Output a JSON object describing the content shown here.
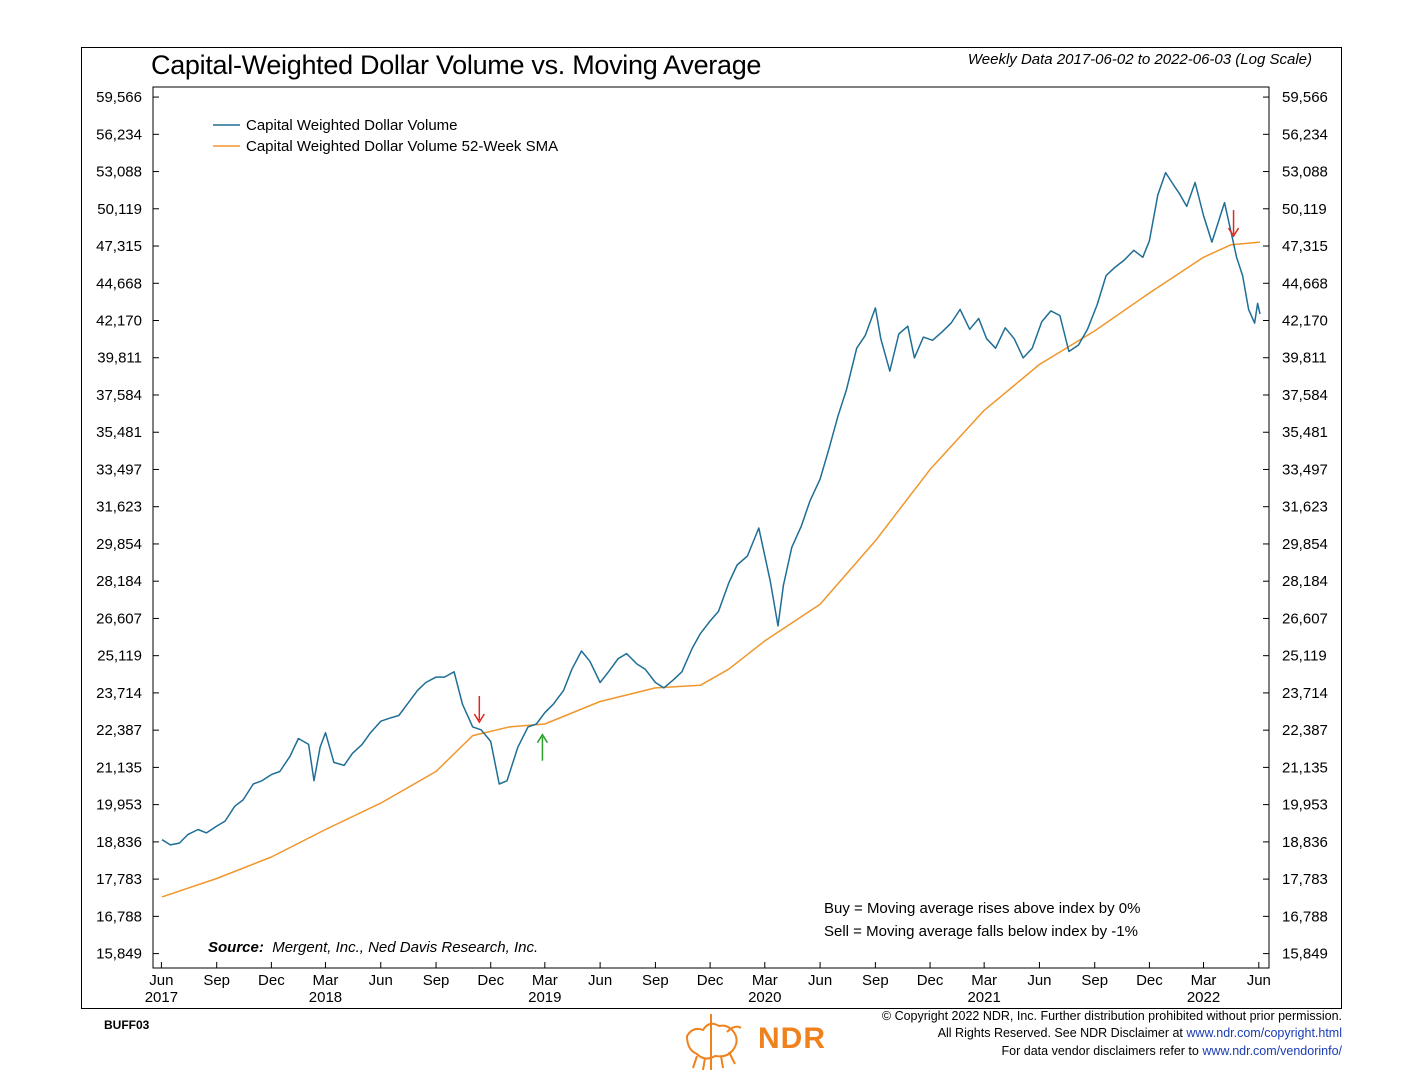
{
  "header": {
    "title": "Capital-Weighted Dollar Volume vs. Moving Average",
    "subtitle": "Weekly Data 2017-06-02 to 2022-06-03 (Log Scale)"
  },
  "chart_data": {
    "type": "line",
    "y_scale": "log",
    "ylim": [
      15500,
      60500
    ],
    "y_ticks": [
      15849,
      16788,
      17783,
      18836,
      19953,
      21135,
      22387,
      23714,
      25119,
      26607,
      28184,
      29854,
      31623,
      33497,
      35481,
      37584,
      39811,
      42170,
      44668,
      47315,
      50119,
      53088,
      56234,
      59566
    ],
    "y_tick_labels": [
      "15,849",
      "16,788",
      "17,783",
      "18,836",
      "19,953",
      "21,135",
      "22,387",
      "23,714",
      "25,119",
      "26,607",
      "28,184",
      "29,854",
      "31,623",
      "33,497",
      "35,481",
      "37,584",
      "39,811",
      "42,170",
      "44,668",
      "47,315",
      "50,119",
      "53,088",
      "56,234",
      "59,566"
    ],
    "x_range": [
      "2017-06-02",
      "2022-06-03"
    ],
    "x_ticks": [
      {
        "date": "2017-06-01",
        "label": "Jun",
        "year": "2017"
      },
      {
        "date": "2017-09-01",
        "label": "Sep"
      },
      {
        "date": "2017-12-01",
        "label": "Dec"
      },
      {
        "date": "2018-03-01",
        "label": "Mar",
        "year": "2018"
      },
      {
        "date": "2018-06-01",
        "label": "Jun"
      },
      {
        "date": "2018-09-01",
        "label": "Sep"
      },
      {
        "date": "2018-12-01",
        "label": "Dec"
      },
      {
        "date": "2019-03-01",
        "label": "Mar",
        "year": "2019"
      },
      {
        "date": "2019-06-01",
        "label": "Jun"
      },
      {
        "date": "2019-09-01",
        "label": "Sep"
      },
      {
        "date": "2019-12-01",
        "label": "Dec"
      },
      {
        "date": "2020-03-01",
        "label": "Mar",
        "year": "2020"
      },
      {
        "date": "2020-06-01",
        "label": "Jun"
      },
      {
        "date": "2020-09-01",
        "label": "Sep"
      },
      {
        "date": "2020-12-01",
        "label": "Dec"
      },
      {
        "date": "2021-03-01",
        "label": "Mar",
        "year": "2021"
      },
      {
        "date": "2021-06-01",
        "label": "Jun"
      },
      {
        "date": "2021-09-01",
        "label": "Sep"
      },
      {
        "date": "2021-12-01",
        "label": "Dec"
      },
      {
        "date": "2022-03-01",
        "label": "Mar",
        "year": "2022"
      },
      {
        "date": "2022-06-01",
        "label": "Jun"
      }
    ],
    "grid": false,
    "legend_position": "top-left",
    "series": [
      {
        "name": "Capital Weighted Dollar Volume",
        "color": "#1f6e96",
        "points": [
          [
            "2017-06-02",
            18900
          ],
          [
            "2017-06-16",
            18750
          ],
          [
            "2017-07-01",
            18800
          ],
          [
            "2017-07-15",
            19050
          ],
          [
            "2017-08-01",
            19200
          ],
          [
            "2017-08-15",
            19100
          ],
          [
            "2017-09-01",
            19300
          ],
          [
            "2017-09-15",
            19450
          ],
          [
            "2017-10-01",
            19900
          ],
          [
            "2017-10-15",
            20100
          ],
          [
            "2017-11-01",
            20600
          ],
          [
            "2017-11-15",
            20700
          ],
          [
            "2017-12-01",
            20900
          ],
          [
            "2017-12-15",
            21000
          ],
          [
            "2018-01-01",
            21500
          ],
          [
            "2018-01-15",
            22100
          ],
          [
            "2018-02-01",
            21900
          ],
          [
            "2018-02-10",
            20700
          ],
          [
            "2018-02-20",
            21800
          ],
          [
            "2018-03-01",
            22300
          ],
          [
            "2018-03-15",
            21300
          ],
          [
            "2018-04-01",
            21200
          ],
          [
            "2018-04-15",
            21600
          ],
          [
            "2018-05-01",
            21900
          ],
          [
            "2018-05-15",
            22300
          ],
          [
            "2018-06-01",
            22700
          ],
          [
            "2018-06-15",
            22800
          ],
          [
            "2018-07-01",
            22900
          ],
          [
            "2018-07-15",
            23300
          ],
          [
            "2018-08-01",
            23800
          ],
          [
            "2018-08-15",
            24100
          ],
          [
            "2018-09-01",
            24300
          ],
          [
            "2018-09-15",
            24300
          ],
          [
            "2018-10-01",
            24500
          ],
          [
            "2018-10-15",
            23300
          ],
          [
            "2018-11-01",
            22500
          ],
          [
            "2018-11-15",
            22400
          ],
          [
            "2018-12-01",
            22000
          ],
          [
            "2018-12-15",
            20600
          ],
          [
            "2018-12-28",
            20700
          ],
          [
            "2019-01-15",
            21800
          ],
          [
            "2019-02-01",
            22500
          ],
          [
            "2019-02-15",
            22600
          ],
          [
            "2019-03-01",
            23000
          ],
          [
            "2019-03-15",
            23300
          ],
          [
            "2019-04-01",
            23800
          ],
          [
            "2019-04-15",
            24600
          ],
          [
            "2019-05-01",
            25300
          ],
          [
            "2019-05-15",
            24900
          ],
          [
            "2019-06-01",
            24100
          ],
          [
            "2019-06-15",
            24500
          ],
          [
            "2019-07-01",
            25000
          ],
          [
            "2019-07-15",
            25200
          ],
          [
            "2019-08-01",
            24800
          ],
          [
            "2019-08-15",
            24600
          ],
          [
            "2019-09-01",
            24100
          ],
          [
            "2019-09-15",
            23900
          ],
          [
            "2019-10-01",
            24200
          ],
          [
            "2019-10-15",
            24500
          ],
          [
            "2019-11-01",
            25400
          ],
          [
            "2019-11-15",
            26000
          ],
          [
            "2019-12-01",
            26500
          ],
          [
            "2019-12-15",
            26900
          ],
          [
            "2020-01-01",
            28100
          ],
          [
            "2020-01-15",
            28900
          ],
          [
            "2020-02-01",
            29300
          ],
          [
            "2020-02-20",
            30600
          ],
          [
            "2020-03-10",
            28200
          ],
          [
            "2020-03-23",
            26300
          ],
          [
            "2020-04-01",
            28000
          ],
          [
            "2020-04-15",
            29700
          ],
          [
            "2020-05-01",
            30700
          ],
          [
            "2020-05-15",
            31900
          ],
          [
            "2020-06-01",
            33000
          ],
          [
            "2020-06-15",
            34500
          ],
          [
            "2020-07-01",
            36400
          ],
          [
            "2020-07-15",
            37900
          ],
          [
            "2020-08-01",
            40400
          ],
          [
            "2020-08-15",
            41200
          ],
          [
            "2020-09-01",
            43000
          ],
          [
            "2020-09-10",
            41000
          ],
          [
            "2020-09-25",
            39000
          ],
          [
            "2020-10-10",
            41300
          ],
          [
            "2020-10-25",
            41800
          ],
          [
            "2020-11-05",
            39800
          ],
          [
            "2020-11-20",
            41100
          ],
          [
            "2020-12-05",
            40900
          ],
          [
            "2020-12-20",
            41400
          ],
          [
            "2021-01-05",
            42000
          ],
          [
            "2021-01-20",
            42900
          ],
          [
            "2021-02-05",
            41600
          ],
          [
            "2021-02-20",
            42300
          ],
          [
            "2021-03-05",
            41000
          ],
          [
            "2021-03-20",
            40400
          ],
          [
            "2021-04-05",
            41700
          ],
          [
            "2021-04-20",
            41000
          ],
          [
            "2021-05-05",
            39800
          ],
          [
            "2021-05-20",
            40400
          ],
          [
            "2021-06-05",
            42100
          ],
          [
            "2021-06-20",
            42800
          ],
          [
            "2021-07-05",
            42500
          ],
          [
            "2021-07-20",
            40200
          ],
          [
            "2021-08-05",
            40600
          ],
          [
            "2021-08-20",
            41600
          ],
          [
            "2021-09-05",
            43200
          ],
          [
            "2021-09-20",
            45200
          ],
          [
            "2021-10-05",
            45800
          ],
          [
            "2021-10-20",
            46300
          ],
          [
            "2021-11-05",
            47000
          ],
          [
            "2021-11-20",
            46500
          ],
          [
            "2021-12-01",
            47700
          ],
          [
            "2021-12-15",
            51200
          ],
          [
            "2021-12-28",
            53000
          ],
          [
            "2022-01-10",
            52000
          ],
          [
            "2022-01-20",
            51300
          ],
          [
            "2022-02-01",
            50300
          ],
          [
            "2022-02-15",
            52200
          ],
          [
            "2022-03-01",
            49600
          ],
          [
            "2022-03-15",
            47600
          ],
          [
            "2022-03-25",
            49000
          ],
          [
            "2022-04-05",
            50600
          ],
          [
            "2022-04-15",
            48500
          ],
          [
            "2022-04-25",
            46500
          ],
          [
            "2022-05-05",
            45200
          ],
          [
            "2022-05-15",
            42900
          ],
          [
            "2022-05-25",
            42000
          ],
          [
            "2022-05-30",
            43300
          ],
          [
            "2022-06-03",
            42600
          ]
        ]
      },
      {
        "name": "Capital Weighted Dollar Volume 52-Week SMA",
        "color": "#f0962b",
        "points": [
          [
            "2017-06-02",
            17300
          ],
          [
            "2017-09-01",
            17800
          ],
          [
            "2017-12-01",
            18400
          ],
          [
            "2018-03-01",
            19200
          ],
          [
            "2018-06-01",
            20000
          ],
          [
            "2018-09-01",
            21000
          ],
          [
            "2018-11-01",
            22200
          ],
          [
            "2019-01-01",
            22500
          ],
          [
            "2019-03-01",
            22600
          ],
          [
            "2019-06-01",
            23400
          ],
          [
            "2019-09-01",
            23900
          ],
          [
            "2019-11-15",
            24000
          ],
          [
            "2020-01-01",
            24600
          ],
          [
            "2020-03-01",
            25700
          ],
          [
            "2020-06-01",
            27200
          ],
          [
            "2020-09-01",
            30000
          ],
          [
            "2020-12-01",
            33500
          ],
          [
            "2021-03-01",
            36700
          ],
          [
            "2021-06-01",
            39400
          ],
          [
            "2021-09-01",
            41500
          ],
          [
            "2021-12-01",
            44000
          ],
          [
            "2022-03-01",
            46500
          ],
          [
            "2022-04-15",
            47400
          ],
          [
            "2022-06-03",
            47600
          ]
        ]
      }
    ],
    "signals": [
      {
        "date": "2018-11-12",
        "value": 22600,
        "type": "sell",
        "color": "#e0281e"
      },
      {
        "date": "2019-02-25",
        "value": 22300,
        "type": "buy",
        "color": "#2aa02a"
      },
      {
        "date": "2022-04-20",
        "value": 47900,
        "type": "sell",
        "color": "#e0281e"
      }
    ]
  },
  "rules": {
    "buy": "Buy = Moving average rises above index by 0%",
    "sell": "Sell = Moving average falls below index by -1%"
  },
  "source": {
    "label": "Source:",
    "text": "Mergent, Inc., Ned Davis Research, Inc."
  },
  "footer": {
    "code": "BUFF03",
    "copyright": "© Copyright 2022 NDR, Inc. Further distribution prohibited without prior permission.",
    "disclaimer_prefix": "All Rights Reserved. See NDR Disclaimer at",
    "disclaimer_link": "www.ndr.com/copyright.html",
    "vendor_prefix": "For data vendor disclaimers refer to",
    "vendor_link": "www.ndr.com/vendorinfo/",
    "logo_text": "NDR"
  }
}
